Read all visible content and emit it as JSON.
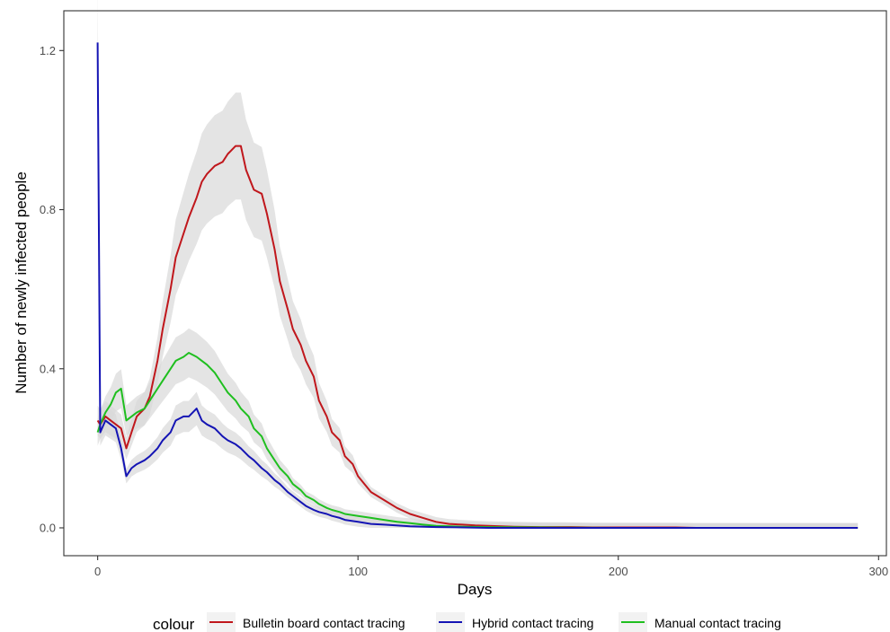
{
  "chart_data": {
    "type": "line",
    "title": "",
    "xlabel": "Days",
    "ylabel": "Number of newly infected people",
    "xlim": [
      -13,
      303
    ],
    "ylim": [
      -0.07,
      1.3
    ],
    "xticks": [
      0,
      100,
      200,
      300
    ],
    "xtick_labels": [
      "0",
      "100",
      "200",
      "300"
    ],
    "yticks": [
      0.0,
      0.4,
      0.8,
      1.2
    ],
    "ytick_labels": [
      "0.0",
      "0.4",
      "0.8",
      "1.2"
    ],
    "grid": false,
    "ribbon_color": "#d9d9d9",
    "legend": {
      "title": "colour",
      "position": "bottom"
    },
    "series": [
      {
        "name": "Bulletin board contact tracing",
        "color": "#c0171c",
        "x": [
          0,
          1,
          3,
          5,
          7,
          9,
          11,
          13,
          15,
          18,
          20,
          23,
          25,
          28,
          30,
          32,
          35,
          38,
          40,
          42,
          45,
          48,
          50,
          53,
          55,
          57,
          60,
          63,
          65,
          68,
          70,
          73,
          75,
          78,
          80,
          83,
          85,
          88,
          90,
          93,
          95,
          98,
          100,
          105,
          110,
          115,
          120,
          125,
          130,
          135,
          140,
          145,
          150,
          160,
          170,
          180,
          190,
          200,
          210,
          222,
          230,
          240,
          260,
          280,
          292
        ],
        "y": [
          0.27,
          0.26,
          0.28,
          0.27,
          0.26,
          0.25,
          0.2,
          0.24,
          0.28,
          0.3,
          0.33,
          0.42,
          0.5,
          0.6,
          0.68,
          0.72,
          0.78,
          0.83,
          0.87,
          0.89,
          0.91,
          0.92,
          0.94,
          0.96,
          0.96,
          0.9,
          0.85,
          0.84,
          0.79,
          0.7,
          0.62,
          0.55,
          0.5,
          0.46,
          0.42,
          0.38,
          0.32,
          0.28,
          0.24,
          0.22,
          0.18,
          0.16,
          0.13,
          0.09,
          0.07,
          0.05,
          0.035,
          0.025,
          0.015,
          0.01,
          0.008,
          0.006,
          0.005,
          0.003,
          0.002,
          0.002,
          0.001,
          0.001,
          0.001,
          0.001,
          0.0,
          0.0,
          0.0,
          0.0,
          0.0
        ]
      },
      {
        "name": "Hybrid contact tracing",
        "color": "#1414b4",
        "x": [
          0,
          1,
          3,
          5,
          7,
          9,
          11,
          13,
          15,
          18,
          20,
          23,
          25,
          28,
          30,
          33,
          35,
          38,
          40,
          42,
          45,
          48,
          50,
          53,
          55,
          58,
          60,
          63,
          65,
          68,
          70,
          73,
          75,
          78,
          80,
          83,
          85,
          88,
          90,
          93,
          95,
          100,
          105,
          110,
          120,
          130,
          140,
          150,
          170,
          200,
          250,
          292
        ],
        "y": [
          1.22,
          0.24,
          0.27,
          0.26,
          0.25,
          0.2,
          0.13,
          0.15,
          0.16,
          0.17,
          0.18,
          0.2,
          0.22,
          0.24,
          0.27,
          0.28,
          0.28,
          0.3,
          0.27,
          0.26,
          0.25,
          0.23,
          0.22,
          0.21,
          0.2,
          0.18,
          0.17,
          0.15,
          0.14,
          0.12,
          0.11,
          0.09,
          0.08,
          0.065,
          0.055,
          0.045,
          0.04,
          0.035,
          0.03,
          0.025,
          0.02,
          0.015,
          0.01,
          0.008,
          0.004,
          0.002,
          0.001,
          0.0,
          0.0,
          0.0,
          0.0,
          0.0
        ]
      },
      {
        "name": "Manual contact tracing",
        "color": "#1fbf1f",
        "x": [
          0,
          1,
          3,
          5,
          7,
          9,
          11,
          13,
          15,
          18,
          20,
          23,
          25,
          28,
          30,
          33,
          35,
          38,
          40,
          42,
          45,
          48,
          50,
          53,
          55,
          58,
          60,
          63,
          65,
          68,
          70,
          73,
          75,
          78,
          80,
          83,
          85,
          88,
          90,
          93,
          95,
          100,
          105,
          110,
          115,
          120,
          125,
          130,
          140,
          150,
          170,
          200,
          250,
          292
        ],
        "y": [
          0.24,
          0.26,
          0.29,
          0.31,
          0.34,
          0.35,
          0.27,
          0.28,
          0.29,
          0.3,
          0.32,
          0.35,
          0.37,
          0.4,
          0.42,
          0.43,
          0.44,
          0.43,
          0.42,
          0.41,
          0.39,
          0.36,
          0.34,
          0.32,
          0.3,
          0.28,
          0.25,
          0.23,
          0.2,
          0.17,
          0.15,
          0.13,
          0.11,
          0.095,
          0.08,
          0.07,
          0.06,
          0.05,
          0.045,
          0.04,
          0.035,
          0.03,
          0.025,
          0.02,
          0.015,
          0.012,
          0.008,
          0.005,
          0.003,
          0.002,
          0.001,
          0.0,
          0.0,
          0.0
        ]
      }
    ]
  }
}
